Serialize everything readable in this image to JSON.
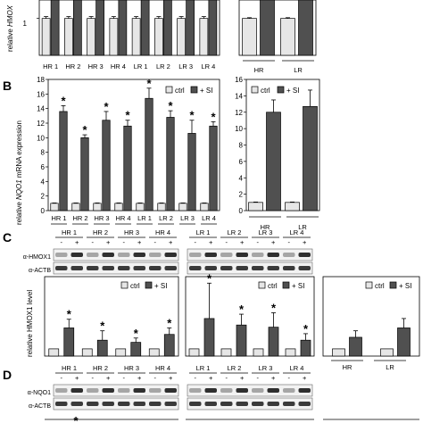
{
  "colors": {
    "ctrl": "#e6e6e6",
    "si": "#505050",
    "axis": "#000000"
  },
  "panelA": {
    "ylabel_prefix": "relative ",
    "ylabel_gene": "HMOX",
    "y_tick": "1",
    "categories": [
      "HR 1",
      "HR 2",
      "HR 3",
      "HR 4",
      "LR 1",
      "LR 2",
      "LR 3",
      "LR 4"
    ],
    "summary_categories": [
      "HR",
      "LR"
    ]
  },
  "panelB": {
    "letter": "B",
    "ylabel_prefix": "relative ",
    "ylabel_gene": "NQO1",
    "ylabel_suffix": " mRNA expression",
    "legend": {
      "ctrl": "ctrl",
      "si": "+ SI"
    },
    "asterisk": "*"
  },
  "panelC": {
    "letter": "C",
    "blot_groups_left": [
      "HR 1",
      "HR 2",
      "HR 3",
      "HR 4"
    ],
    "blot_groups_right": [
      "LR 1",
      "LR 2",
      "LR 3",
      "LR 4"
    ],
    "blot_markers": [
      "-",
      "+"
    ],
    "blot_rows": [
      "α-HMOX1",
      "α-ACTB"
    ],
    "ylabel": "relative HMOX1 level",
    "legend": {
      "ctrl": "ctrl",
      "si": "+ SI"
    },
    "summary_categories": [
      "HR",
      "LR"
    ],
    "asterisk": "*"
  },
  "panelD": {
    "letter": "D",
    "blot_groups_left": [
      "HR 1",
      "HR 2",
      "HR 3",
      "HR 4"
    ],
    "blot_groups_right": [
      "LR 1",
      "LR 2",
      "LR 3",
      "LR 4"
    ],
    "blot_markers": [
      "-",
      "+"
    ],
    "blot_rows": [
      "α-NQO1",
      "α-ACTB"
    ],
    "asterisk": "*"
  },
  "chart_data": [
    {
      "type": "bar",
      "panel": "A",
      "categories": [
        "HR 1",
        "HR 2",
        "HR 3",
        "HR 4",
        "LR 1",
        "LR 2",
        "LR 3",
        "LR 4"
      ],
      "series": [
        {
          "name": "ctrl",
          "values": [
            1,
            1,
            1,
            1,
            1,
            1,
            1,
            1
          ],
          "errors": [
            0.05,
            0.05,
            0.05,
            0.05,
            0.05,
            0.05,
            0.05,
            0.05
          ]
        },
        {
          "name": "+ SI",
          "values": [
            1.8,
            1.8,
            1.8,
            1.8,
            1.8,
            1.8,
            1.8,
            1.8
          ],
          "errors": [
            0.2,
            0.3,
            0.3,
            0.2,
            0.2,
            0.3,
            0.2,
            0.2
          ]
        }
      ],
      "ylabel": "relative HMOX",
      "note": "top cropped"
    },
    {
      "type": "bar",
      "panel": "A-summary",
      "categories": [
        "HR",
        "LR"
      ],
      "series": [
        {
          "name": "ctrl",
          "values": [
            1,
            1
          ],
          "errors": [
            0.02,
            0.02
          ]
        },
        {
          "name": "+ SI",
          "values": [
            1.8,
            1.8
          ],
          "errors": [
            0,
            0
          ]
        }
      ]
    },
    {
      "type": "bar",
      "panel": "B",
      "categories": [
        "HR 1",
        "HR 2",
        "HR 3",
        "HR 4",
        "LR 1",
        "LR 2",
        "LR 3",
        "LR 4"
      ],
      "series": [
        {
          "name": "ctrl",
          "values": [
            1,
            1,
            1,
            1,
            1,
            1,
            1,
            1
          ],
          "errors": [
            0.05,
            0.05,
            0.05,
            0.05,
            0.05,
            0.05,
            0.05,
            0.05
          ]
        },
        {
          "name": "+ SI",
          "values": [
            13.6,
            10.0,
            12.4,
            11.6,
            15.4,
            12.8,
            10.6,
            11.6
          ],
          "errors": [
            0.8,
            0.4,
            1.2,
            0.8,
            1.4,
            0.9,
            1.8,
            0.6
          ]
        }
      ],
      "significant": [
        true,
        true,
        true,
        true,
        true,
        true,
        true,
        true
      ],
      "ylabel": "relative NQO1 mRNA expression",
      "yticks": [
        0,
        2,
        4,
        6,
        8,
        10,
        12,
        14,
        16,
        18
      ],
      "ylim": [
        0,
        18
      ]
    },
    {
      "type": "bar",
      "panel": "B-summary",
      "categories": [
        "HR",
        "LR"
      ],
      "series": [
        {
          "name": "ctrl",
          "values": [
            1,
            1
          ],
          "errors": [
            0.05,
            0.05
          ]
        },
        {
          "name": "+ SI",
          "values": [
            12.0,
            12.7
          ],
          "errors": [
            1.5,
            2.0
          ]
        }
      ],
      "yticks": [
        0,
        2,
        4,
        6,
        8,
        10,
        12,
        14,
        16
      ],
      "ylim": [
        0,
        16
      ]
    },
    {
      "type": "bar",
      "panel": "C",
      "categories": [
        "HR 1",
        "HR 2",
        "HR 3",
        "HR 4",
        "LR 1",
        "LR 2",
        "LR 3",
        "LR 4"
      ],
      "series": [
        {
          "name": "ctrl",
          "values": [
            1,
            1,
            1,
            1,
            1,
            1,
            1,
            1
          ],
          "errors": [
            0,
            0,
            0,
            0,
            0,
            0,
            0,
            0
          ]
        },
        {
          "name": "+ SI",
          "values": [
            3.9,
            2.2,
            1.9,
            3.0,
            5.2,
            4.3,
            4.0,
            2.2
          ],
          "errors": [
            1.2,
            1.3,
            0.6,
            0.9,
            4.9,
            1.5,
            2.0,
            0.9
          ]
        }
      ],
      "significant": [
        true,
        true,
        true,
        true,
        true,
        true,
        true,
        true
      ],
      "ylabel": "relative HMOX1 level",
      "ylim": [
        0,
        11
      ]
    },
    {
      "type": "bar",
      "panel": "C-summary",
      "categories": [
        "HR",
        "LR"
      ],
      "series": [
        {
          "name": "ctrl",
          "values": [
            1,
            1
          ],
          "errors": [
            0,
            0
          ]
        },
        {
          "name": "+ SI",
          "values": [
            2.6,
            3.9
          ],
          "errors": [
            0.9,
            1.3
          ]
        }
      ],
      "ylim": [
        0,
        11
      ]
    }
  ]
}
